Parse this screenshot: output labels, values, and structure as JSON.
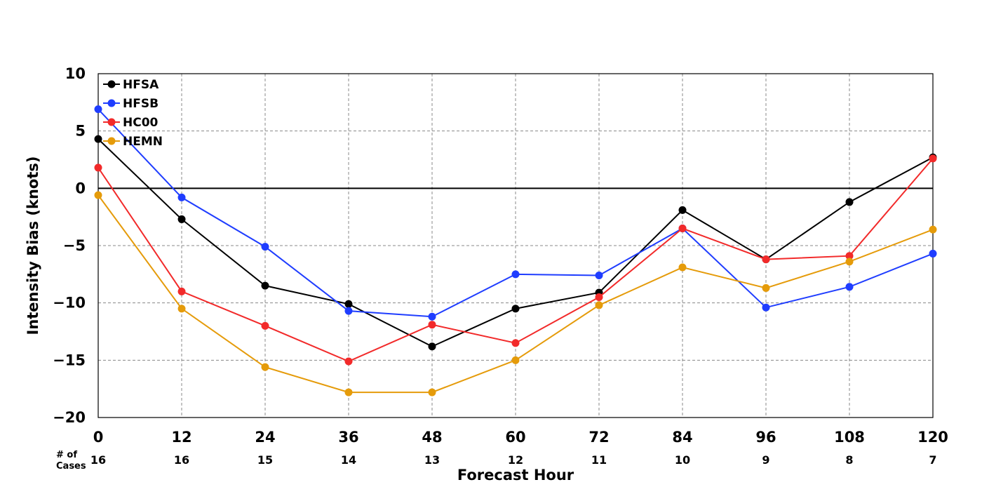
{
  "chart_data": {
    "type": "line",
    "xlabel": "Forecast Hour",
    "ylabel": "Intensity Bias (knots)",
    "x": [
      0,
      12,
      24,
      36,
      48,
      60,
      72,
      84,
      96,
      108,
      120
    ],
    "xlim": [
      0,
      120
    ],
    "ylim": [
      -20,
      10
    ],
    "xticks": [
      "0",
      "12",
      "24",
      "36",
      "48",
      "60",
      "72",
      "84",
      "96",
      "108",
      "120"
    ],
    "yticks": [
      "10",
      "5",
      "0",
      "−5",
      "−10",
      "−15",
      "−20"
    ],
    "ytick_values": [
      10,
      5,
      0,
      -5,
      -10,
      -15,
      -20
    ],
    "grid": true,
    "zero_line": true,
    "legend_position": "top-left",
    "cases_caption": [
      "# of",
      "Cases"
    ],
    "cases": [
      "16",
      "16",
      "15",
      "14",
      "13",
      "12",
      "11",
      "10",
      "9",
      "8",
      "7"
    ],
    "series": [
      {
        "name": "HFSA",
        "color": "#000000",
        "values": [
          4.3,
          -2.7,
          -8.5,
          -10.1,
          -13.8,
          -10.5,
          -9.1,
          -1.9,
          -6.2,
          -1.2,
          2.7
        ]
      },
      {
        "name": "HFSB",
        "color": "#1f3dff",
        "values": [
          6.9,
          -0.8,
          -5.1,
          -10.7,
          -11.2,
          -7.5,
          -7.6,
          -3.5,
          -10.4,
          -8.6,
          -5.7
        ]
      },
      {
        "name": "HC00",
        "color": "#f22a2a",
        "values": [
          1.8,
          -9.0,
          -12.0,
          -15.1,
          -11.9,
          -13.5,
          -9.5,
          -3.5,
          -6.2,
          -5.9,
          2.6
        ]
      },
      {
        "name": "HEMN",
        "color": "#e59b0a",
        "values": [
          -0.6,
          -10.5,
          -15.6,
          -17.8,
          -17.8,
          -15.0,
          -10.2,
          -6.9,
          -8.7,
          -6.4,
          -3.6
        ]
      }
    ]
  }
}
